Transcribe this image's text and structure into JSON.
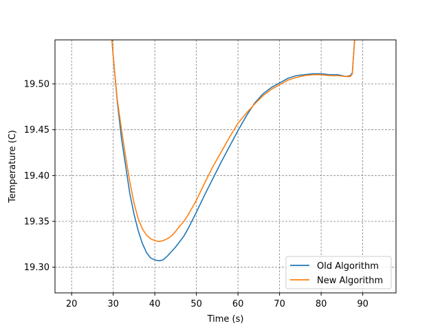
{
  "chart_data": {
    "type": "line",
    "xlabel": "Time (s)",
    "ylabel": "Temperature (C)",
    "xlim": [
      16,
      98
    ],
    "ylim": [
      19.272,
      19.548
    ],
    "xticks": [
      20,
      30,
      40,
      50,
      60,
      70,
      80,
      90
    ],
    "yticks": [
      19.3,
      19.35,
      19.4,
      19.45,
      19.5
    ],
    "grid": true,
    "grid_style": "dashed",
    "legend_position": "lower right",
    "series": [
      {
        "name": "Old Algorithm",
        "color": "#1f77b4",
        "points": [
          [
            29.5,
            19.56
          ],
          [
            30,
            19.53
          ],
          [
            31,
            19.48
          ],
          [
            32,
            19.44
          ],
          [
            33,
            19.41
          ],
          [
            34,
            19.38
          ],
          [
            35,
            19.358
          ],
          [
            36,
            19.34
          ],
          [
            37,
            19.326
          ],
          [
            38,
            19.316
          ],
          [
            39,
            19.31
          ],
          [
            40,
            19.308
          ],
          [
            41,
            19.307
          ],
          [
            42,
            19.308
          ],
          [
            43,
            19.312
          ],
          [
            44,
            19.317
          ],
          [
            45,
            19.322
          ],
          [
            46,
            19.328
          ],
          [
            47,
            19.334
          ],
          [
            48,
            19.342
          ],
          [
            49,
            19.351
          ],
          [
            50,
            19.36
          ],
          [
            52,
            19.379
          ],
          [
            54,
            19.397
          ],
          [
            56,
            19.415
          ],
          [
            58,
            19.432
          ],
          [
            60,
            19.449
          ],
          [
            62,
            19.465
          ],
          [
            64,
            19.479
          ],
          [
            66,
            19.489
          ],
          [
            68,
            19.496
          ],
          [
            70,
            19.501
          ],
          [
            72,
            19.506
          ],
          [
            74,
            19.509
          ],
          [
            76,
            19.51
          ],
          [
            78,
            19.511
          ],
          [
            80,
            19.511
          ],
          [
            82,
            19.51
          ],
          [
            84,
            19.51
          ],
          [
            86,
            19.508
          ],
          [
            87,
            19.509
          ],
          [
            87.5,
            19.512
          ],
          [
            88,
            19.545
          ],
          [
            88.3,
            19.56
          ]
        ]
      },
      {
        "name": "New Algorithm",
        "color": "#ff7f0e",
        "points": [
          [
            29.5,
            19.56
          ],
          [
            30,
            19.53
          ],
          [
            31,
            19.482
          ],
          [
            32,
            19.45
          ],
          [
            33,
            19.42
          ],
          [
            34,
            19.393
          ],
          [
            35,
            19.37
          ],
          [
            36,
            19.353
          ],
          [
            37,
            19.342
          ],
          [
            38,
            19.335
          ],
          [
            39,
            19.331
          ],
          [
            40,
            19.329
          ],
          [
            41,
            19.328
          ],
          [
            42,
            19.329
          ],
          [
            43,
            19.331
          ],
          [
            44,
            19.334
          ],
          [
            45,
            19.339
          ],
          [
            46,
            19.345
          ],
          [
            47,
            19.35
          ],
          [
            48,
            19.357
          ],
          [
            49,
            19.365
          ],
          [
            50,
            19.373
          ],
          [
            52,
            19.392
          ],
          [
            54,
            19.41
          ],
          [
            56,
            19.426
          ],
          [
            58,
            19.442
          ],
          [
            60,
            19.457
          ],
          [
            62,
            19.468
          ],
          [
            64,
            19.478
          ],
          [
            66,
            19.487
          ],
          [
            68,
            19.494
          ],
          [
            70,
            19.499
          ],
          [
            72,
            19.504
          ],
          [
            74,
            19.507
          ],
          [
            76,
            19.509
          ],
          [
            78,
            19.51
          ],
          [
            80,
            19.51
          ],
          [
            82,
            19.509
          ],
          [
            84,
            19.509
          ],
          [
            86,
            19.508
          ],
          [
            87,
            19.508
          ],
          [
            87.5,
            19.511
          ],
          [
            88,
            19.545
          ],
          [
            88.3,
            19.56
          ]
        ]
      }
    ]
  }
}
